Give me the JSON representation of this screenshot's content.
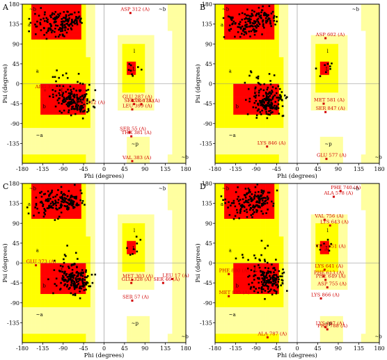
{
  "colors": {
    "core": "#ff0000",
    "allowed": "#ffff00",
    "generous": "#ffffa0",
    "disallowed": "#ffffff",
    "point": "#000000",
    "outlier": "#d10000",
    "label": "#d10000",
    "border": "#000000"
  },
  "region_symbols": [
    "A",
    "B",
    "L",
    "b",
    "a",
    "l",
    "p",
    "~b",
    "~a",
    "~l",
    "~p"
  ],
  "chart_data": [
    {
      "type": "scatter",
      "panel": "A",
      "xlabel": "Phi (degrees)",
      "ylabel": "Psi (degrees)",
      "xlim": [
        -180,
        180
      ],
      "ylim": [
        -180,
        180
      ],
      "xticks": [
        -180,
        -135,
        -90,
        -45,
        0,
        45,
        90,
        135,
        180
      ],
      "yticks": [
        -135,
        -90,
        -45,
        0,
        45,
        90,
        135,
        180
      ],
      "labeled_residues": [
        {
          "label": "ASP 312 (A)",
          "phi": 58,
          "psi": 160
        },
        {
          "label": "ARG 373 (A)",
          "phi": -130,
          "psi": -15
        },
        {
          "label": "GLU 312 (A)",
          "phi": -42,
          "psi": -50
        },
        {
          "label": "GLU 287 (A)",
          "phi": 62,
          "psi": -38
        },
        {
          "label": "SER 356 (A)",
          "phi": 66,
          "psi": -46
        },
        {
          "label": "LYS 378 (A)",
          "phi": 82,
          "psi": -46
        },
        {
          "label": "LEU 399 (A)",
          "phi": 62,
          "psi": -58
        },
        {
          "label": "SER 55 (A)",
          "phi": 56,
          "psi": -110
        },
        {
          "label": "THR 381 (A)",
          "phi": 60,
          "psi": -119
        },
        {
          "label": "VAL 383 (A)",
          "phi": 62,
          "psi": -175
        }
      ]
    },
    {
      "type": "scatter",
      "panel": "B",
      "xlabel": "Phi (degrees)",
      "ylabel": "Psi (degrees)",
      "xlim": [
        -180,
        180
      ],
      "ylim": [
        -180,
        180
      ],
      "xticks": [
        -180,
        -135,
        -90,
        -45,
        0,
        45,
        90,
        135,
        180
      ],
      "yticks": [
        -135,
        -90,
        -45,
        0,
        45,
        90,
        135,
        180
      ],
      "labeled_residues": [
        {
          "label": "ASP 602 (A)",
          "phi": 62,
          "psi": 103
        },
        {
          "label": "MET 581 (A)",
          "phi": 58,
          "psi": -45
        },
        {
          "label": "SER 847 (A)",
          "phi": 62,
          "psi": -64
        },
        {
          "label": "LYS 846 (A)",
          "phi": -66,
          "psi": -142
        },
        {
          "label": "GLU 577 (A)",
          "phi": 64,
          "psi": -170
        }
      ]
    },
    {
      "type": "scatter",
      "panel": "C",
      "xlabel": "Phi (degrees)",
      "ylabel": "Psi (degrees)",
      "xlim": [
        -180,
        180
      ],
      "ylim": [
        -180,
        180
      ],
      "xticks": [
        -180,
        -135,
        -90,
        -45,
        0,
        45,
        90,
        135,
        180
      ],
      "yticks": [
        -135,
        -90,
        -45,
        0,
        45,
        90,
        135,
        180
      ],
      "labeled_residues": [
        {
          "label": "GLU 373 (A)",
          "phi": -150,
          "psi": -5
        },
        {
          "label": "MET 303 (A)",
          "phi": 62,
          "psi": -38
        },
        {
          "label": "GLU 328 (A)",
          "phi": 60,
          "psi": -45
        },
        {
          "label": "SER 46 (A)",
          "phi": 130,
          "psi": -45
        },
        {
          "label": "LEU 17 (A)",
          "phi": 150,
          "psi": -36
        },
        {
          "label": "SER 57 (A)",
          "phi": 62,
          "psi": -85
        }
      ]
    },
    {
      "type": "scatter",
      "panel": "D",
      "xlabel": "Phi (degrees)",
      "ylabel": "Psi (degrees)",
      "xlim": [
        -180,
        180
      ],
      "ylim": [
        -180,
        180
      ],
      "xticks": [
        -180,
        -135,
        -90,
        -45,
        0,
        45,
        90,
        135,
        180
      ],
      "yticks": [
        -135,
        -90,
        -45,
        0,
        45,
        90,
        135,
        180
      ],
      "labeled_residues": [
        {
          "label": "PHE 740 (A)",
          "phi": 95,
          "psi": 163
        },
        {
          "label": "ALA 578 (A)",
          "phi": 80,
          "psi": 150
        },
        {
          "label": "VAL 756 (A)",
          "phi": 60,
          "psi": 98
        },
        {
          "label": "LYS 643 (A)",
          "phi": 72,
          "psi": 85
        },
        {
          "label": "THR 651 (A)",
          "phi": 62,
          "psi": 30
        },
        {
          "label": "LYS 641 (A)",
          "phi": 60,
          "psi": -15
        },
        {
          "label": "PHE 880 (A)",
          "phi": -150,
          "psi": -25
        },
        {
          "label": "PHE 613 (A)",
          "phi": 58,
          "psi": -30
        },
        {
          "label": "PHE 649 (A)",
          "phi": 62,
          "psi": -38
        },
        {
          "label": "ASP 755 (A)",
          "phi": 66,
          "psi": -55
        },
        {
          "label": "MET 835 (A)",
          "phi": -150,
          "psi": -75
        },
        {
          "label": "LYS 866 (A)",
          "phi": 52,
          "psi": -80
        },
        {
          "label": "LYS 807 (A)",
          "phi": 62,
          "psi": -145
        },
        {
          "label": "PHE 788 (A)",
          "phi": 66,
          "psi": -150
        },
        {
          "label": "ALA 787 (A)",
          "phi": -65,
          "psi": -168
        }
      ]
    }
  ]
}
